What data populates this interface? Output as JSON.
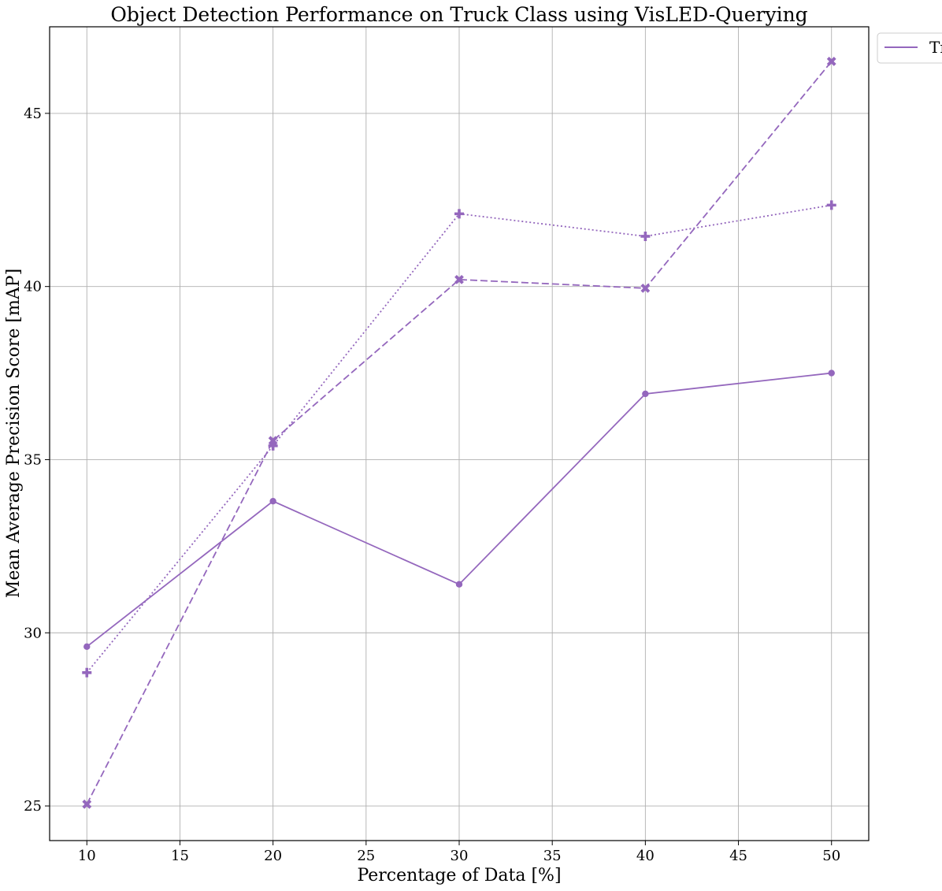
{
  "chart_data": {
    "type": "line",
    "title": "Object Detection Performance on Truck Class using VisLED-Querying",
    "xlabel": "Percentage of Data [%]",
    "ylabel": "Mean Average Precision Score [mAP]",
    "xlim": [
      8,
      52
    ],
    "ylim": [
      24,
      47.5
    ],
    "xticks": [
      10,
      15,
      20,
      25,
      30,
      35,
      40,
      45,
      50
    ],
    "yticks": [
      25,
      30,
      35,
      40,
      45
    ],
    "grid": true,
    "legend_position": "outside-top-right",
    "legend_visible_text": "Tr",
    "color": "#9467bd",
    "x": [
      10,
      20,
      30,
      40,
      50
    ],
    "series": [
      {
        "values": [
          29.6,
          33.8,
          31.4,
          36.9,
          37.5
        ],
        "line_style": "solid",
        "marker": "circle"
      },
      {
        "values": [
          25.05,
          35.55,
          40.2,
          39.95,
          46.5
        ],
        "line_style": "dashed",
        "marker": "x"
      },
      {
        "values": [
          28.85,
          35.4,
          42.1,
          41.45,
          42.35
        ],
        "line_style": "dotted",
        "marker": "plus"
      }
    ]
  }
}
